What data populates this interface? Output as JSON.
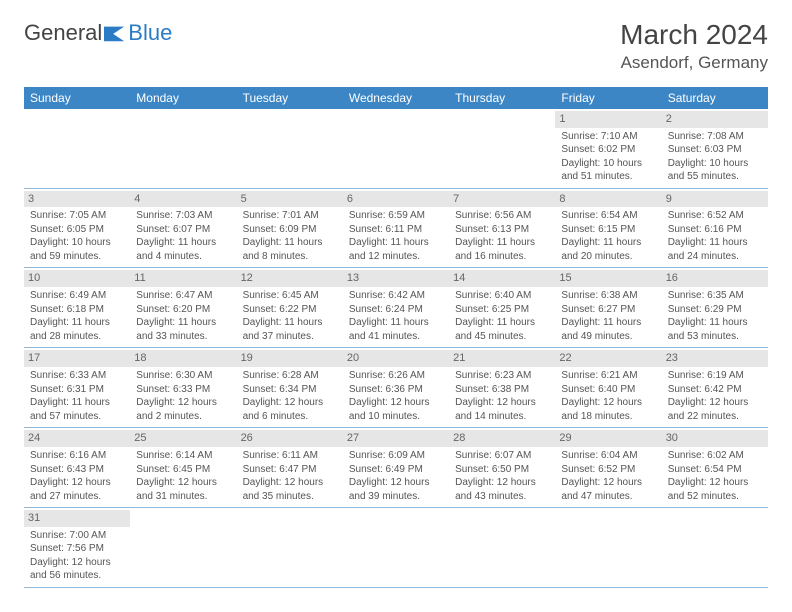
{
  "logo": {
    "part1": "General",
    "part2": "Blue"
  },
  "title": "March 2024",
  "location": "Asendorf, Germany",
  "colors": {
    "header_bg": "#3d86c6",
    "header_fg": "#ffffff",
    "daynum_bg": "#e6e6e6",
    "row_border": "#8fb8da"
  },
  "day_headers": [
    "Sunday",
    "Monday",
    "Tuesday",
    "Wednesday",
    "Thursday",
    "Friday",
    "Saturday"
  ],
  "weeks": [
    [
      {
        "n": "",
        "lines": []
      },
      {
        "n": "",
        "lines": []
      },
      {
        "n": "",
        "lines": []
      },
      {
        "n": "",
        "lines": []
      },
      {
        "n": "",
        "lines": []
      },
      {
        "n": "1",
        "lines": [
          "Sunrise: 7:10 AM",
          "Sunset: 6:02 PM",
          "Daylight: 10 hours",
          "and 51 minutes."
        ]
      },
      {
        "n": "2",
        "lines": [
          "Sunrise: 7:08 AM",
          "Sunset: 6:03 PM",
          "Daylight: 10 hours",
          "and 55 minutes."
        ]
      }
    ],
    [
      {
        "n": "3",
        "lines": [
          "Sunrise: 7:05 AM",
          "Sunset: 6:05 PM",
          "Daylight: 10 hours",
          "and 59 minutes."
        ]
      },
      {
        "n": "4",
        "lines": [
          "Sunrise: 7:03 AM",
          "Sunset: 6:07 PM",
          "Daylight: 11 hours",
          "and 4 minutes."
        ]
      },
      {
        "n": "5",
        "lines": [
          "Sunrise: 7:01 AM",
          "Sunset: 6:09 PM",
          "Daylight: 11 hours",
          "and 8 minutes."
        ]
      },
      {
        "n": "6",
        "lines": [
          "Sunrise: 6:59 AM",
          "Sunset: 6:11 PM",
          "Daylight: 11 hours",
          "and 12 minutes."
        ]
      },
      {
        "n": "7",
        "lines": [
          "Sunrise: 6:56 AM",
          "Sunset: 6:13 PM",
          "Daylight: 11 hours",
          "and 16 minutes."
        ]
      },
      {
        "n": "8",
        "lines": [
          "Sunrise: 6:54 AM",
          "Sunset: 6:15 PM",
          "Daylight: 11 hours",
          "and 20 minutes."
        ]
      },
      {
        "n": "9",
        "lines": [
          "Sunrise: 6:52 AM",
          "Sunset: 6:16 PM",
          "Daylight: 11 hours",
          "and 24 minutes."
        ]
      }
    ],
    [
      {
        "n": "10",
        "lines": [
          "Sunrise: 6:49 AM",
          "Sunset: 6:18 PM",
          "Daylight: 11 hours",
          "and 28 minutes."
        ]
      },
      {
        "n": "11",
        "lines": [
          "Sunrise: 6:47 AM",
          "Sunset: 6:20 PM",
          "Daylight: 11 hours",
          "and 33 minutes."
        ]
      },
      {
        "n": "12",
        "lines": [
          "Sunrise: 6:45 AM",
          "Sunset: 6:22 PM",
          "Daylight: 11 hours",
          "and 37 minutes."
        ]
      },
      {
        "n": "13",
        "lines": [
          "Sunrise: 6:42 AM",
          "Sunset: 6:24 PM",
          "Daylight: 11 hours",
          "and 41 minutes."
        ]
      },
      {
        "n": "14",
        "lines": [
          "Sunrise: 6:40 AM",
          "Sunset: 6:25 PM",
          "Daylight: 11 hours",
          "and 45 minutes."
        ]
      },
      {
        "n": "15",
        "lines": [
          "Sunrise: 6:38 AM",
          "Sunset: 6:27 PM",
          "Daylight: 11 hours",
          "and 49 minutes."
        ]
      },
      {
        "n": "16",
        "lines": [
          "Sunrise: 6:35 AM",
          "Sunset: 6:29 PM",
          "Daylight: 11 hours",
          "and 53 minutes."
        ]
      }
    ],
    [
      {
        "n": "17",
        "lines": [
          "Sunrise: 6:33 AM",
          "Sunset: 6:31 PM",
          "Daylight: 11 hours",
          "and 57 minutes."
        ]
      },
      {
        "n": "18",
        "lines": [
          "Sunrise: 6:30 AM",
          "Sunset: 6:33 PM",
          "Daylight: 12 hours",
          "and 2 minutes."
        ]
      },
      {
        "n": "19",
        "lines": [
          "Sunrise: 6:28 AM",
          "Sunset: 6:34 PM",
          "Daylight: 12 hours",
          "and 6 minutes."
        ]
      },
      {
        "n": "20",
        "lines": [
          "Sunrise: 6:26 AM",
          "Sunset: 6:36 PM",
          "Daylight: 12 hours",
          "and 10 minutes."
        ]
      },
      {
        "n": "21",
        "lines": [
          "Sunrise: 6:23 AM",
          "Sunset: 6:38 PM",
          "Daylight: 12 hours",
          "and 14 minutes."
        ]
      },
      {
        "n": "22",
        "lines": [
          "Sunrise: 6:21 AM",
          "Sunset: 6:40 PM",
          "Daylight: 12 hours",
          "and 18 minutes."
        ]
      },
      {
        "n": "23",
        "lines": [
          "Sunrise: 6:19 AM",
          "Sunset: 6:42 PM",
          "Daylight: 12 hours",
          "and 22 minutes."
        ]
      }
    ],
    [
      {
        "n": "24",
        "lines": [
          "Sunrise: 6:16 AM",
          "Sunset: 6:43 PM",
          "Daylight: 12 hours",
          "and 27 minutes."
        ]
      },
      {
        "n": "25",
        "lines": [
          "Sunrise: 6:14 AM",
          "Sunset: 6:45 PM",
          "Daylight: 12 hours",
          "and 31 minutes."
        ]
      },
      {
        "n": "26",
        "lines": [
          "Sunrise: 6:11 AM",
          "Sunset: 6:47 PM",
          "Daylight: 12 hours",
          "and 35 minutes."
        ]
      },
      {
        "n": "27",
        "lines": [
          "Sunrise: 6:09 AM",
          "Sunset: 6:49 PM",
          "Daylight: 12 hours",
          "and 39 minutes."
        ]
      },
      {
        "n": "28",
        "lines": [
          "Sunrise: 6:07 AM",
          "Sunset: 6:50 PM",
          "Daylight: 12 hours",
          "and 43 minutes."
        ]
      },
      {
        "n": "29",
        "lines": [
          "Sunrise: 6:04 AM",
          "Sunset: 6:52 PM",
          "Daylight: 12 hours",
          "and 47 minutes."
        ]
      },
      {
        "n": "30",
        "lines": [
          "Sunrise: 6:02 AM",
          "Sunset: 6:54 PM",
          "Daylight: 12 hours",
          "and 52 minutes."
        ]
      }
    ],
    [
      {
        "n": "31",
        "lines": [
          "Sunrise: 7:00 AM",
          "Sunset: 7:56 PM",
          "Daylight: 12 hours",
          "and 56 minutes."
        ]
      },
      {
        "n": "",
        "lines": []
      },
      {
        "n": "",
        "lines": []
      },
      {
        "n": "",
        "lines": []
      },
      {
        "n": "",
        "lines": []
      },
      {
        "n": "",
        "lines": []
      },
      {
        "n": "",
        "lines": []
      }
    ]
  ]
}
